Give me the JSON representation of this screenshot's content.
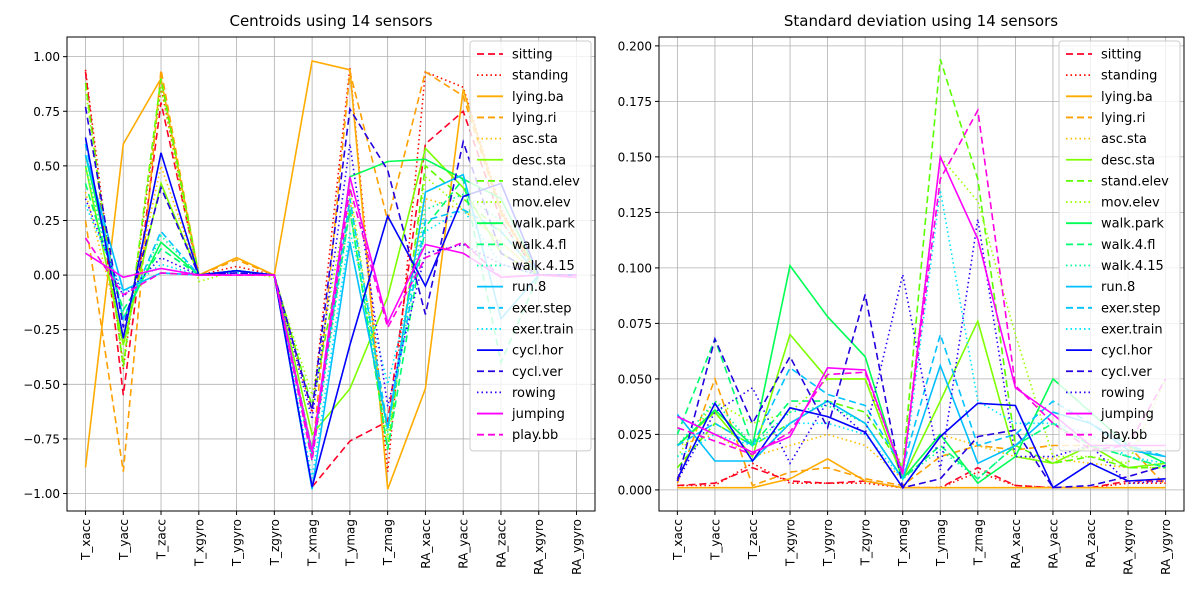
{
  "chart_data": [
    {
      "type": "line",
      "title": "Centroids using 14 sensors",
      "categories": [
        "T_xacc",
        "T_yacc",
        "T_zacc",
        "T_xgyro",
        "T_ygyro",
        "T_zgyro",
        "T_xmag",
        "T_ymag",
        "T_zmag",
        "RA_xacc",
        "RA_yacc",
        "RA_zacc",
        "RA_xgyro",
        "RA_ygyro"
      ],
      "ylim": [
        -1.08,
        1.09
      ],
      "yticks": [
        -1.0,
        -0.75,
        -0.5,
        -0.25,
        0.0,
        0.25,
        0.5,
        0.75,
        1.0
      ],
      "ytick_labels": [
        "−1.00",
        "−0.75",
        "−0.50",
        "−0.25",
        "0.00",
        "0.25",
        "0.50",
        "0.75",
        "1.00"
      ],
      "grid": true,
      "legend_position": "top-right",
      "series": [
        {
          "name": "sitting",
          "color": "#ff0028",
          "dash": "dashed",
          "values": [
            0.93,
            -0.55,
            0.79,
            0.0,
            0.02,
            0.0,
            -0.97,
            -0.76,
            -0.67,
            0.6,
            0.75,
            0.25,
            0.0,
            0.0
          ]
        },
        {
          "name": "standing",
          "color": "#ff0a00",
          "dash": "dotted",
          "values": [
            0.94,
            -0.43,
            0.86,
            0.0,
            0.04,
            0.0,
            -0.63,
            0.95,
            -0.9,
            0.93,
            0.86,
            0.3,
            0.0,
            0.0
          ]
        },
        {
          "name": "lying.ba",
          "color": "#ffac00",
          "dash": "solid",
          "values": [
            -0.88,
            0.6,
            0.9,
            0.0,
            0.08,
            0.0,
            0.98,
            0.94,
            -0.98,
            -0.52,
            0.85,
            0.29,
            0.0,
            0.0
          ]
        },
        {
          "name": "lying.ri",
          "color": "#ffa000",
          "dash": "dashed",
          "values": [
            0.25,
            -0.9,
            0.94,
            0.0,
            0.07,
            0.0,
            -0.83,
            0.93,
            0.25,
            0.93,
            0.82,
            0.28,
            0.0,
            0.0
          ]
        },
        {
          "name": "asc.sta",
          "color": "#ffc000",
          "dash": "dotted",
          "values": [
            0.38,
            -0.3,
            0.5,
            0.0,
            0.02,
            0.0,
            -0.8,
            0.35,
            -0.7,
            0.35,
            0.3,
            0.15,
            0.0,
            0.0
          ]
        },
        {
          "name": "desc.sta",
          "color": "#7dff00",
          "dash": "solid",
          "values": [
            0.5,
            -0.32,
            0.42,
            0.0,
            0.02,
            0.0,
            -0.73,
            -0.52,
            -0.1,
            0.58,
            0.4,
            0.1,
            0.0,
            0.0
          ]
        },
        {
          "name": "stand.elev",
          "color": "#5cff00",
          "dash": "dashed",
          "values": [
            0.88,
            -0.42,
            0.9,
            0.0,
            0.02,
            0.0,
            -0.6,
            0.3,
            -0.8,
            0.5,
            0.35,
            0.2,
            0.0,
            0.0
          ]
        },
        {
          "name": "mov.elev",
          "color": "#9cff00",
          "dash": "dotted",
          "values": [
            0.85,
            -0.4,
            0.86,
            -0.03,
            0.02,
            -0.01,
            -0.55,
            0.4,
            -0.75,
            0.45,
            0.3,
            0.15,
            0.0,
            0.0
          ]
        },
        {
          "name": "walk.park",
          "color": "#00ff55",
          "dash": "solid",
          "values": [
            0.55,
            -0.2,
            0.15,
            0.0,
            0.02,
            0.0,
            -0.82,
            0.45,
            0.52,
            0.53,
            0.44,
            0.35,
            0.0,
            0.0
          ]
        },
        {
          "name": "walk.4.fl",
          "color": "#00ff70",
          "dash": "dashed",
          "values": [
            0.42,
            -0.16,
            0.12,
            0.0,
            0.02,
            0.0,
            -0.8,
            0.3,
            -0.8,
            0.22,
            0.44,
            -0.4,
            0.0,
            0.0
          ]
        },
        {
          "name": "walk.4.15",
          "color": "#00ff9a",
          "dash": "dotted",
          "values": [
            0.5,
            -0.2,
            0.18,
            0.0,
            0.02,
            0.0,
            -0.85,
            0.3,
            -0.72,
            0.3,
            0.37,
            0.25,
            0.0,
            0.0
          ]
        },
        {
          "name": "run.8",
          "color": "#00bfff",
          "dash": "solid",
          "values": [
            0.55,
            -0.07,
            0.01,
            0.0,
            0.02,
            0.0,
            -0.98,
            0.15,
            -0.7,
            0.38,
            0.46,
            -0.2,
            0.0,
            0.0
          ]
        },
        {
          "name": "exer.step",
          "color": "#00c4ff",
          "dash": "dashed",
          "values": [
            0.6,
            -0.2,
            0.2,
            0.0,
            0.02,
            0.0,
            -0.82,
            0.35,
            -0.7,
            0.25,
            0.3,
            0.2,
            0.0,
            0.0
          ]
        },
        {
          "name": "exer.train",
          "color": "#00e5ff",
          "dash": "dotted",
          "values": [
            0.32,
            -0.08,
            0.05,
            0.0,
            0.01,
            0.0,
            -0.93,
            0.2,
            -0.5,
            0.2,
            0.3,
            0.05,
            0.0,
            0.0
          ]
        },
        {
          "name": "cycl.hor",
          "color": "#0000ff",
          "dash": "solid",
          "values": [
            0.63,
            -0.29,
            0.56,
            0.0,
            0.02,
            0.0,
            -0.97,
            -0.32,
            0.27,
            -0.05,
            0.36,
            0.42,
            0.0,
            0.0
          ]
        },
        {
          "name": "cycl.ver",
          "color": "#2200e0",
          "dash": "dashed",
          "values": [
            0.77,
            -0.24,
            0.4,
            0.0,
            0.01,
            0.0,
            -0.62,
            0.76,
            0.48,
            -0.18,
            0.61,
            0.1,
            0.0,
            0.0
          ]
        },
        {
          "name": "rowing",
          "color": "#2e00ff",
          "dash": "dotted",
          "values": [
            0.35,
            -0.1,
            0.08,
            0.0,
            0.01,
            0.0,
            -0.66,
            0.6,
            -0.6,
            0.1,
            0.14,
            0.05,
            0.0,
            0.0
          ]
        },
        {
          "name": "jumping",
          "color": "#ff00ff",
          "dash": "solid",
          "values": [
            0.1,
            -0.01,
            0.03,
            0.0,
            0.0,
            0.0,
            -0.81,
            0.45,
            -0.22,
            0.14,
            0.1,
            -0.01,
            0.0,
            -0.01
          ]
        },
        {
          "name": "play.bb",
          "color": "#ff00e0",
          "dash": "dashed",
          "values": [
            0.17,
            -0.09,
            0.01,
            0.0,
            0.0,
            0.0,
            -0.85,
            0.4,
            -0.24,
            0.08,
            0.15,
            -0.01,
            0.0,
            0.0
          ]
        }
      ]
    },
    {
      "type": "line",
      "title": "Standard deviation using 14 sensors",
      "categories": [
        "T_xacc",
        "T_yacc",
        "T_zacc",
        "T_xgyro",
        "T_ygyro",
        "T_zgyro",
        "T_xmag",
        "T_ymag",
        "T_zmag",
        "RA_xacc",
        "RA_yacc",
        "RA_zacc",
        "RA_xgyro",
        "RA_ygyro"
      ],
      "ylim": [
        -0.0095,
        0.204
      ],
      "yticks": [
        0.0,
        0.025,
        0.05,
        0.075,
        0.1,
        0.125,
        0.15,
        0.175,
        0.2
      ],
      "ytick_labels": [
        "0.000",
        "0.025",
        "0.050",
        "0.075",
        "0.100",
        "0.125",
        "0.150",
        "0.175",
        "0.200"
      ],
      "grid": true,
      "legend_position": "top-right",
      "series": [
        {
          "name": "sitting",
          "color": "#ff0028",
          "dash": "dashed",
          "values": [
            0.002,
            0.003,
            0.01,
            0.004,
            0.003,
            0.004,
            0.001,
            0.001,
            0.01,
            0.002,
            0.001,
            0.001,
            0.004,
            0.004
          ]
        },
        {
          "name": "standing",
          "color": "#ff0a00",
          "dash": "dotted",
          "values": [
            0.002,
            0.002,
            0.012,
            0.003,
            0.003,
            0.003,
            0.001,
            0.001,
            0.008,
            0.002,
            0.001,
            0.001,
            0.003,
            0.003
          ]
        },
        {
          "name": "lying.ba",
          "color": "#ffac00",
          "dash": "solid",
          "values": [
            0.001,
            0.001,
            0.001,
            0.005,
            0.014,
            0.004,
            0.001,
            0.001,
            0.001,
            0.001,
            0.001,
            0.001,
            0.001,
            0.001
          ]
        },
        {
          "name": "lying.ri",
          "color": "#ffa000",
          "dash": "dashed",
          "values": [
            0.003,
            0.05,
            0.002,
            0.008,
            0.01,
            0.005,
            0.002,
            0.015,
            0.02,
            0.018,
            0.02,
            0.02,
            0.02,
            0.002
          ]
        },
        {
          "name": "asc.sta",
          "color": "#ffc000",
          "dash": "dotted",
          "values": [
            0.02,
            0.025,
            0.015,
            0.02,
            0.025,
            0.02,
            0.005,
            0.025,
            0.02,
            0.015,
            0.014,
            0.012,
            0.01,
            0.01
          ]
        },
        {
          "name": "desc.sta",
          "color": "#7dff00",
          "dash": "solid",
          "values": [
            0.02,
            0.035,
            0.015,
            0.07,
            0.05,
            0.05,
            0.005,
            0.04,
            0.076,
            0.015,
            0.012,
            0.02,
            0.01,
            0.012
          ]
        },
        {
          "name": "stand.elev",
          "color": "#5cff00",
          "dash": "dashed",
          "values": [
            0.01,
            0.03,
            0.02,
            0.03,
            0.04,
            0.035,
            0.01,
            0.194,
            0.14,
            0.02,
            0.012,
            0.015,
            0.01,
            0.01
          ]
        },
        {
          "name": "mov.elev",
          "color": "#9cff00",
          "dash": "dotted",
          "values": [
            0.015,
            0.04,
            0.03,
            0.035,
            0.05,
            0.05,
            0.01,
            0.15,
            0.13,
            0.07,
            0.015,
            0.015,
            0.012,
            0.05
          ]
        },
        {
          "name": "walk.park",
          "color": "#00ff55",
          "dash": "solid",
          "values": [
            0.02,
            0.036,
            0.02,
            0.101,
            0.078,
            0.06,
            0.005,
            0.025,
            0.003,
            0.015,
            0.05,
            0.035,
            0.02,
            0.012
          ]
        },
        {
          "name": "walk.4.fl",
          "color": "#00ff70",
          "dash": "dashed",
          "values": [
            0.025,
            0.068,
            0.02,
            0.04,
            0.04,
            0.03,
            0.005,
            0.02,
            0.005,
            0.02,
            0.03,
            0.02,
            0.015,
            0.01
          ]
        },
        {
          "name": "walk.4.15",
          "color": "#00ff9a",
          "dash": "dotted",
          "values": [
            0.02,
            0.04,
            0.02,
            0.035,
            0.038,
            0.03,
            0.005,
            0.018,
            0.005,
            0.02,
            0.03,
            0.02,
            0.015,
            0.01
          ]
        },
        {
          "name": "run.8",
          "color": "#00bfff",
          "dash": "solid",
          "values": [
            0.034,
            0.013,
            0.013,
            0.03,
            0.04,
            0.03,
            0.005,
            0.056,
            0.012,
            0.02,
            0.035,
            0.03,
            0.018,
            0.015
          ]
        },
        {
          "name": "exer.step",
          "color": "#00c4ff",
          "dash": "dashed",
          "values": [
            0.02,
            0.03,
            0.02,
            0.055,
            0.043,
            0.038,
            0.01,
            0.07,
            0.02,
            0.025,
            0.04,
            0.03,
            0.02,
            0.015
          ]
        },
        {
          "name": "exer.train",
          "color": "#00e5ff",
          "dash": "dotted",
          "values": [
            0.015,
            0.025,
            0.02,
            0.03,
            0.03,
            0.025,
            0.005,
            0.135,
            0.04,
            0.03,
            0.03,
            0.025,
            0.015,
            0.012
          ]
        },
        {
          "name": "cycl.hor",
          "color": "#0000ff",
          "dash": "solid",
          "values": [
            0.005,
            0.039,
            0.013,
            0.037,
            0.033,
            0.026,
            0.001,
            0.024,
            0.039,
            0.038,
            0.001,
            0.012,
            0.004,
            0.005
          ]
        },
        {
          "name": "cycl.ver",
          "color": "#2200e0",
          "dash": "dashed",
          "values": [
            0.004,
            0.068,
            0.03,
            0.06,
            0.028,
            0.088,
            0.001,
            0.005,
            0.024,
            0.027,
            0.001,
            0.002,
            0.006,
            0.011
          ]
        },
        {
          "name": "rowing",
          "color": "#2e00ff",
          "dash": "dotted",
          "values": [
            0.004,
            0.035,
            0.046,
            0.012,
            0.04,
            0.025,
            0.097,
            0.009,
            0.122,
            0.015,
            0.015,
            0.02,
            0.003,
            0.004
          ]
        },
        {
          "name": "jumping",
          "color": "#ff00ff",
          "dash": "solid",
          "values": [
            0.033,
            0.025,
            0.017,
            0.024,
            0.055,
            0.054,
            0.007,
            0.15,
            0.113,
            0.046,
            0.034,
            0.02,
            0.02,
            0.02
          ]
        },
        {
          "name": "play.bb",
          "color": "#ff00e0",
          "dash": "dashed",
          "values": [
            0.028,
            0.022,
            0.016,
            0.026,
            0.052,
            0.053,
            0.008,
            0.14,
            0.171,
            0.047,
            0.03,
            0.018,
            0.02,
            0.05
          ]
        }
      ]
    }
  ]
}
